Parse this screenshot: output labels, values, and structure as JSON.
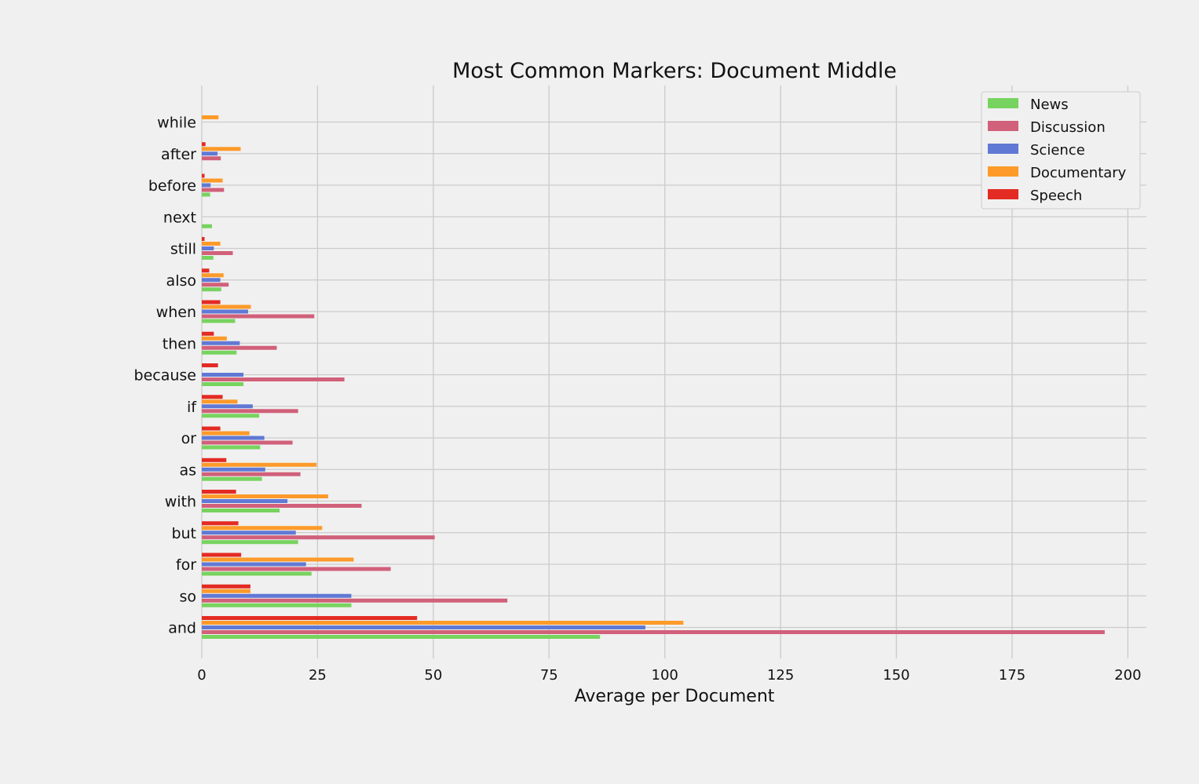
{
  "chart_data": {
    "type": "bar",
    "orientation": "horizontal",
    "title": "Most Common Markers: Document Middle",
    "xlabel": "Average per Document",
    "ylabel": "",
    "xlim": [
      0,
      204
    ],
    "xticks": [
      0,
      25,
      50,
      75,
      100,
      125,
      150,
      175,
      200
    ],
    "grid": true,
    "legend_position": "top-right",
    "categories": [
      "and",
      "so",
      "for",
      "but",
      "with",
      "as",
      "or",
      "if",
      "because",
      "then",
      "when",
      "also",
      "still",
      "next",
      "before",
      "after",
      "while"
    ],
    "series": [
      {
        "name": "News",
        "color": "#77d35f",
        "values": [
          86,
          32.3,
          23.7,
          20.8,
          16.8,
          13,
          12.6,
          12.4,
          9,
          7.5,
          7.2,
          4.2,
          2.5,
          2.2,
          1.8,
          0,
          0
        ]
      },
      {
        "name": "Discussion",
        "color": "#d1607a",
        "values": [
          195,
          66,
          40.8,
          50.3,
          34.5,
          21.3,
          19.6,
          20.8,
          30.8,
          16.2,
          24.3,
          5.8,
          6.7,
          0,
          4.8,
          4.1,
          0
        ]
      },
      {
        "name": "Science",
        "color": "#6079d5",
        "values": [
          95.8,
          32.3,
          22.5,
          20.3,
          18.5,
          13.7,
          13.5,
          11,
          9,
          8.2,
          10,
          4,
          2.6,
          0,
          1.9,
          3.4,
          0
        ]
      },
      {
        "name": "Documentary",
        "color": "#fd9a29",
        "values": [
          104,
          10.5,
          32.8,
          26,
          27.3,
          24.8,
          10.3,
          7.7,
          0,
          5.4,
          10.6,
          4.7,
          4,
          0,
          4.5,
          8.4,
          3.6
        ]
      },
      {
        "name": "Speech",
        "color": "#e32b23",
        "values": [
          46.5,
          10.5,
          8.5,
          7.9,
          7.4,
          5.3,
          4,
          4.5,
          3.5,
          2.6,
          4,
          1.6,
          0.6,
          0,
          0.6,
          0.8,
          0
        ]
      }
    ]
  }
}
